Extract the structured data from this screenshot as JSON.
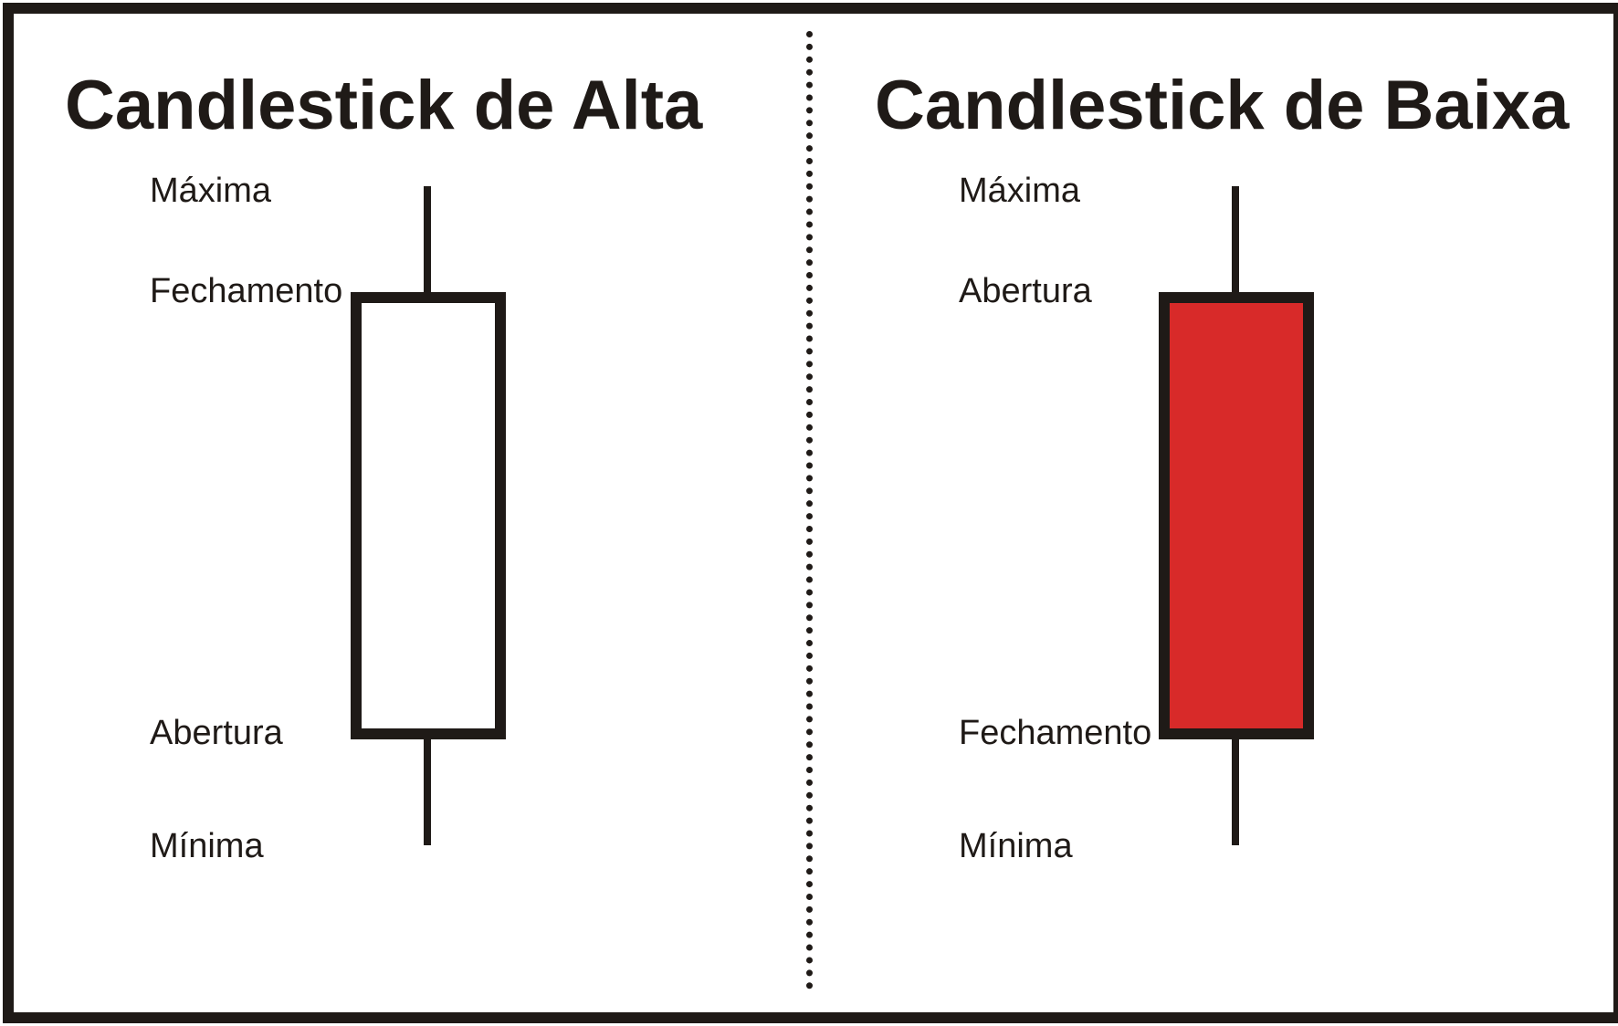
{
  "candles": [
    {
      "id": "alta",
      "title": "Candlestick de Alta",
      "body_color": "#ffffff",
      "labels": {
        "high": "Máxima",
        "body_top": "Fechamento",
        "body_bottom": "Abertura",
        "low": "Mínima"
      }
    },
    {
      "id": "baixa",
      "title": "Candlestick de Baixa",
      "body_color": "#d82a29",
      "labels": {
        "high": "Máxima",
        "body_top": "Abertura",
        "body_bottom": "Fechamento",
        "low": "Mínima"
      }
    }
  ],
  "colors": {
    "ink": "#1f1a17",
    "background": "#ffffff"
  }
}
